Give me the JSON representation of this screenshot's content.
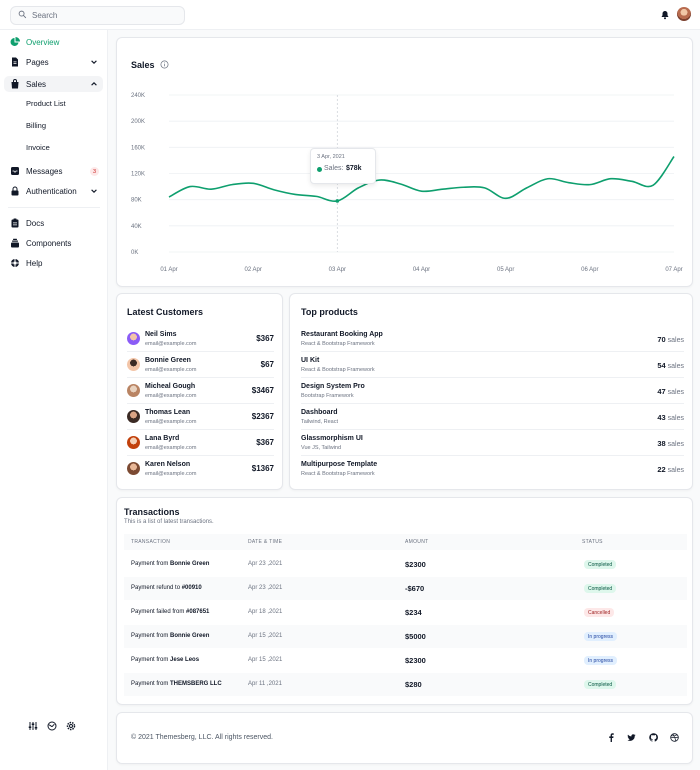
{
  "search": {
    "placeholder": "Search"
  },
  "sidebar": {
    "items": [
      {
        "label": "Overview",
        "icon": "chart-pie-icon"
      },
      {
        "label": "Pages",
        "icon": "document-icon"
      },
      {
        "label": "Sales",
        "icon": "shopping-bag-icon"
      },
      {
        "label": "Messages",
        "icon": "inbox-icon",
        "badge": "3"
      },
      {
        "label": "Authentication",
        "icon": "lock-icon"
      },
      {
        "label": "Docs",
        "icon": "clipboard-icon"
      },
      {
        "label": "Components",
        "icon": "collection-icon"
      },
      {
        "label": "Help",
        "icon": "support-icon"
      }
    ],
    "sales_sub": [
      "Product List",
      "Billing",
      "Invoice"
    ]
  },
  "sales": {
    "title": "Sales",
    "tooltip": {
      "date": "3 Apr, 2021",
      "label": "Sales:",
      "value": "$78k"
    }
  },
  "chart_data": {
    "type": "line",
    "title": "Sales",
    "x": [
      "01 Apr",
      "02 Apr",
      "03 Apr",
      "04 Apr",
      "05 Apr",
      "06 Apr",
      "07 Apr"
    ],
    "yticks": [
      "0K",
      "40K",
      "80K",
      "120K",
      "160K",
      "200K",
      "240K"
    ],
    "ylim": [
      0,
      240
    ],
    "series": [
      {
        "color": "#0e9f6e",
        "points": [
          [
            0,
            84
          ],
          [
            0.25,
            100
          ],
          [
            0.5,
            96
          ],
          [
            0.75,
            103
          ],
          [
            1.0,
            105
          ],
          [
            1.25,
            95
          ],
          [
            1.5,
            88
          ],
          [
            1.75,
            85
          ],
          [
            2.0,
            78
          ],
          [
            2.25,
            98
          ],
          [
            2.5,
            110
          ],
          [
            2.75,
            104
          ],
          [
            3.0,
            93
          ],
          [
            3.25,
            96
          ],
          [
            3.5,
            99
          ],
          [
            3.75,
            98
          ],
          [
            4.0,
            82
          ],
          [
            4.25,
            98
          ],
          [
            4.5,
            112
          ],
          [
            4.75,
            106
          ],
          [
            5.0,
            103
          ],
          [
            5.25,
            112
          ],
          [
            5.5,
            108
          ],
          [
            5.75,
            102
          ],
          [
            6.0,
            146
          ]
        ]
      }
    ],
    "grid": true
  },
  "customers": {
    "title": "Latest Customers",
    "rows": [
      {
        "name": "Neil Sims",
        "email": "email@example.com",
        "amount": "$367"
      },
      {
        "name": "Bonnie Green",
        "email": "email@example.com",
        "amount": "$67"
      },
      {
        "name": "Micheal Gough",
        "email": "email@example.com",
        "amount": "$3467"
      },
      {
        "name": "Thomas Lean",
        "email": "email@example.com",
        "amount": "$2367"
      },
      {
        "name": "Lana Byrd",
        "email": "email@example.com",
        "amount": "$367"
      },
      {
        "name": "Karen Nelson",
        "email": "email@example.com",
        "amount": "$1367"
      }
    ]
  },
  "products": {
    "title": "Top products",
    "sales_unit": "sales",
    "rows": [
      {
        "name": "Restaurant Booking App",
        "sub": "React & Bootstrap Framework",
        "sales": "70"
      },
      {
        "name": "UI Kit",
        "sub": "React & Bootstrap Framework",
        "sales": "54"
      },
      {
        "name": "Design System Pro",
        "sub": "Bootstrap Framework",
        "sales": "47"
      },
      {
        "name": "Dashboard",
        "sub": "Tailwind, React",
        "sales": "43"
      },
      {
        "name": "Glassmorphism UI",
        "sub": "Vue JS, Tailwind",
        "sales": "38"
      },
      {
        "name": "Multipurpose Template",
        "sub": "React & Bootstrap Framework",
        "sales": "22"
      }
    ]
  },
  "transactions": {
    "title": "Transactions",
    "subtitle": "This is a list of latest transactions.",
    "headers": [
      "TRANSACTION",
      "DATE & TIME",
      "AMOUNT",
      "STATUS"
    ],
    "rows": [
      {
        "prefix": "Payment from ",
        "party": "Bonnie Green",
        "date": "Apr 23 ,2021",
        "amount": "$2300",
        "status": "Completed",
        "kind": "completed"
      },
      {
        "prefix": "Payment refund to ",
        "party": "#00910",
        "date": "Apr 23 ,2021",
        "amount": "-$670",
        "status": "Completed",
        "kind": "completed"
      },
      {
        "prefix": "Payment failed from ",
        "party": "#087651",
        "date": "Apr 18 ,2021",
        "amount": "$234",
        "status": "Cancelled",
        "kind": "cancelled"
      },
      {
        "prefix": "Payment from ",
        "party": "Bonnie Green",
        "date": "Apr 15 ,2021",
        "amount": "$5000",
        "status": "In progress",
        "kind": "progress"
      },
      {
        "prefix": "Payment from ",
        "party": "Jese Leos",
        "date": "Apr 15 ,2021",
        "amount": "$2300",
        "status": "In progress",
        "kind": "progress"
      },
      {
        "prefix": "Payment from ",
        "party": "THEMSBERG LLC",
        "date": "Apr 11 ,2021",
        "amount": "$280",
        "status": "Completed",
        "kind": "completed"
      }
    ]
  },
  "footer": {
    "text": "© 2021 Themesberg, LLC. All rights reserved."
  },
  "colors": {
    "accent": "#0e9f6e"
  }
}
